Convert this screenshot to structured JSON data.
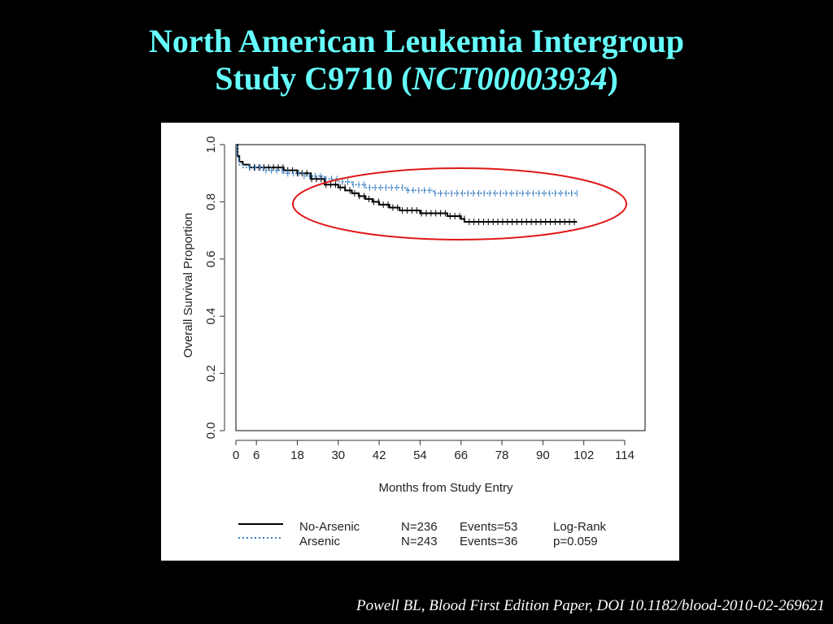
{
  "slide": {
    "title_line1": "North American Leukemia Intergroup",
    "title_line2_prefix": "Study C9710 (",
    "title_line2_id": "NCT00003934",
    "title_line2_suffix": ")",
    "citation": "Powell BL, Blood First Edition Paper, DOI 10.1182/blood-2010-02-269621"
  },
  "colors": {
    "background": "#000000",
    "title": "#66ffff",
    "no_arsenic": "#000000",
    "arsenic": "#3a7fc4",
    "highlight_ellipse": "#e01818"
  },
  "chart_data": {
    "type": "line",
    "subtype": "kaplan-meier",
    "xlabel": "Months from Study Entry",
    "ylabel": "Overall Survival Proportion",
    "xlim": [
      0,
      114
    ],
    "ylim": [
      0,
      1
    ],
    "x_ticks": [
      0,
      6,
      18,
      30,
      42,
      54,
      66,
      78,
      90,
      102,
      114
    ],
    "y_ticks": [
      "0.0",
      "0.2",
      "0.4",
      "0.6",
      "0.8",
      "1.0"
    ],
    "y_tick_values": [
      0,
      0.2,
      0.4,
      0.6,
      0.8,
      1.0
    ],
    "series": [
      {
        "name": "No-Arsenic",
        "style": "solid",
        "n": "N=236",
        "events": "Events=53",
        "x": [
          0,
          0.5,
          1,
          2,
          4,
          8,
          14,
          18,
          22,
          26,
          30,
          32,
          34,
          36,
          38,
          40,
          42,
          45,
          48,
          51,
          54,
          58,
          62,
          66,
          67,
          70,
          80,
          90,
          100
        ],
        "y": [
          1.0,
          0.96,
          0.94,
          0.93,
          0.92,
          0.92,
          0.91,
          0.9,
          0.88,
          0.86,
          0.85,
          0.84,
          0.83,
          0.82,
          0.81,
          0.8,
          0.79,
          0.78,
          0.77,
          0.77,
          0.76,
          0.76,
          0.75,
          0.74,
          0.73,
          0.73,
          0.73,
          0.73,
          0.73
        ]
      },
      {
        "name": "Arsenic",
        "style": "dotted",
        "n": "N=243",
        "events": "Events=36",
        "x": [
          0,
          0.5,
          1,
          2,
          4,
          8,
          14,
          20,
          26,
          30,
          34,
          38,
          44,
          50,
          54,
          58,
          100
        ],
        "y": [
          1.0,
          0.95,
          0.93,
          0.92,
          0.92,
          0.91,
          0.9,
          0.89,
          0.88,
          0.87,
          0.86,
          0.85,
          0.85,
          0.84,
          0.84,
          0.83,
          0.83
        ]
      }
    ],
    "legend_position": "bottom",
    "legend_stat": [
      "Log-Rank",
      "p=0.059"
    ],
    "annotation": "red ellipse highlighting curve separation",
    "grid": false
  }
}
